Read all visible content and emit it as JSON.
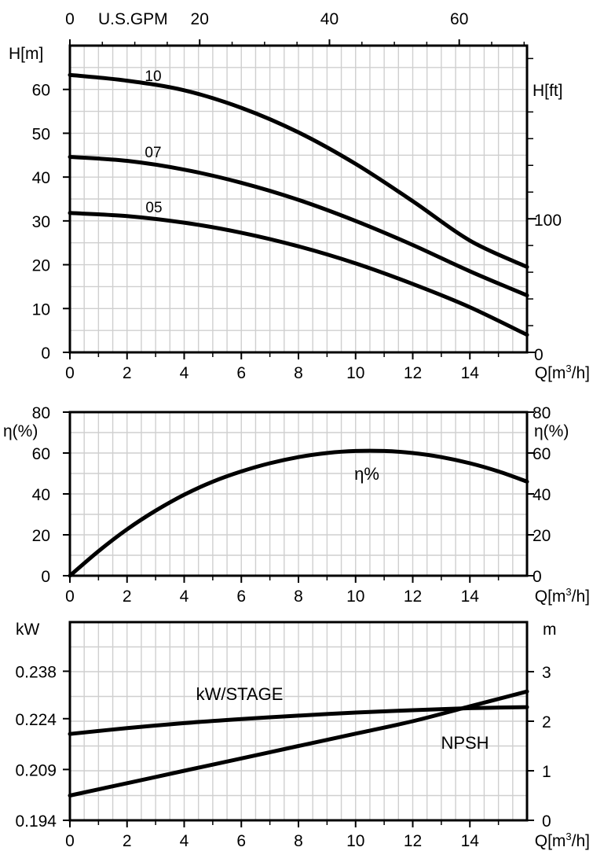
{
  "chart_data": [
    {
      "type": "line",
      "title": "",
      "xlabel": "Q[m³/h]",
      "x_ticks": [
        "0",
        "2",
        "4",
        "6",
        "8",
        "10",
        "12",
        "14"
      ],
      "xlim": [
        0,
        16
      ],
      "ylabel": "H[m]",
      "y_ticks": [
        "0",
        "10",
        "20",
        "30",
        "40",
        "50",
        "60"
      ],
      "ylim": [
        0,
        70
      ],
      "top_axis_label": "U.S.GPM",
      "top_ticks": [
        "0",
        "20",
        "40",
        "60"
      ],
      "top_tick_values": [
        0,
        20,
        40,
        60
      ],
      "right_axis_label": "H[ft]",
      "right_ticks": [
        "0",
        "100"
      ],
      "right_tick_values": [
        0,
        100
      ],
      "grid": true,
      "series": [
        {
          "name": "10",
          "x": [
            0,
            2,
            4,
            6,
            8,
            10,
            12,
            14,
            16
          ],
          "values": [
            63.3,
            62.0,
            59.8,
            55.8,
            50.2,
            43.0,
            34.5,
            25.5,
            19.5
          ]
        },
        {
          "name": "07",
          "x": [
            0,
            2,
            4,
            6,
            8,
            10,
            12,
            14,
            16
          ],
          "values": [
            44.6,
            43.7,
            41.7,
            38.7,
            34.8,
            30.0,
            24.5,
            18.5,
            13.0
          ]
        },
        {
          "name": "05",
          "x": [
            0,
            2,
            4,
            6,
            8,
            10,
            12,
            14,
            16
          ],
          "values": [
            31.8,
            31.1,
            29.6,
            27.3,
            24.2,
            20.3,
            15.6,
            10.3,
            4.0
          ]
        }
      ]
    },
    {
      "type": "line",
      "title": "",
      "xlabel": "Q[m³/h]",
      "x_ticks": [
        "0",
        "2",
        "4",
        "6",
        "8",
        "10",
        "12",
        "14"
      ],
      "xlim": [
        0,
        16
      ],
      "ylabel": "η(%)",
      "y_ticks": [
        "0",
        "20",
        "40",
        "60",
        "80"
      ],
      "ylim": [
        0,
        80
      ],
      "right_axis_label": "η(%)",
      "right_ticks": [
        "0",
        "20",
        "40",
        "60",
        "80"
      ],
      "grid": true,
      "series": [
        {
          "name": "η%",
          "x": [
            0,
            1,
            2,
            3,
            4,
            5,
            6,
            7,
            8,
            9,
            10,
            11,
            12,
            13,
            14,
            15,
            16
          ],
          "values": [
            0,
            12.0,
            22.7,
            31.8,
            39.6,
            46.0,
            51.0,
            55.0,
            58.0,
            60.0,
            61.0,
            61.0,
            60.0,
            58.0,
            55.0,
            51.0,
            46.0
          ]
        }
      ]
    },
    {
      "type": "line",
      "title": "",
      "xlabel": "Q[m³/h]",
      "x_ticks": [
        "0",
        "2",
        "4",
        "6",
        "8",
        "10",
        "12",
        "14"
      ],
      "xlim": [
        0,
        16
      ],
      "ylabel": "kW",
      "y_ticks": [
        "0.194",
        "0.209",
        "0.224",
        "0.238"
      ],
      "ylim": [
        0.194,
        0.2525
      ],
      "right_axis_label": "m",
      "right_ticks": [
        "0",
        "1",
        "2",
        "3"
      ],
      "right_ylim": [
        0,
        4
      ],
      "grid": true,
      "series": [
        {
          "name": "kW/STAGE",
          "axis": "left",
          "x": [
            0,
            2,
            4,
            6,
            8,
            10,
            12,
            14,
            16
          ],
          "values": [
            0.2195,
            0.2212,
            0.2227,
            0.2239,
            0.2249,
            0.2258,
            0.2265,
            0.2271,
            0.2274
          ]
        },
        {
          "name": "NPSH",
          "axis": "right",
          "x": [
            0,
            2,
            4,
            6,
            8,
            10,
            12,
            14,
            16
          ],
          "values": [
            0.5,
            0.75,
            1.0,
            1.25,
            1.5,
            1.75,
            2.0,
            2.3,
            2.6
          ]
        }
      ]
    }
  ]
}
